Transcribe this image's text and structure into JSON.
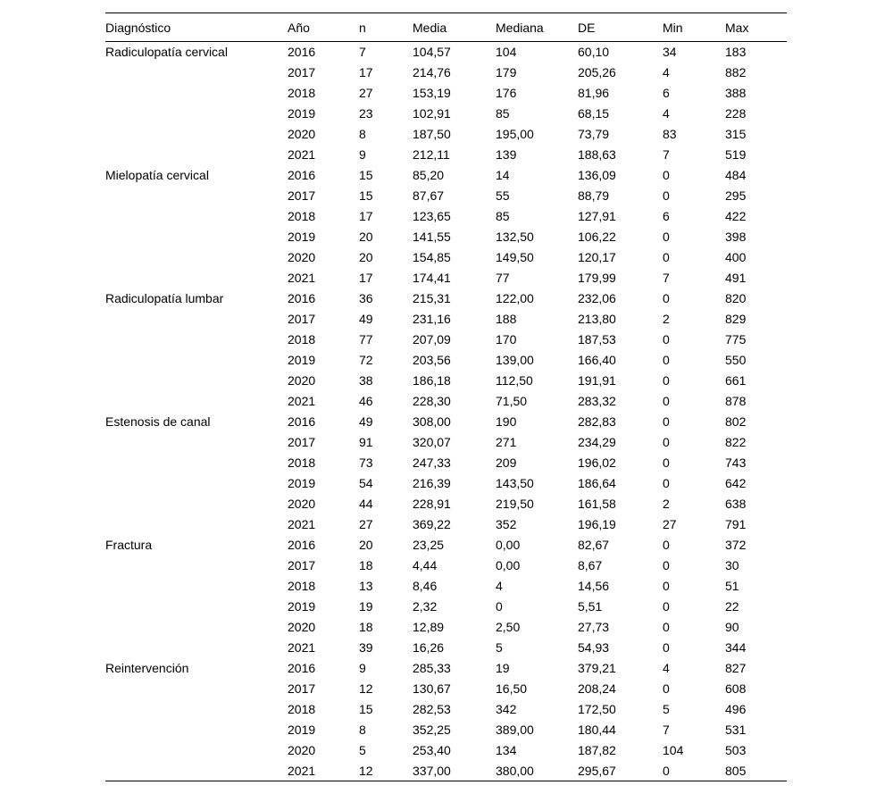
{
  "table": {
    "columns": [
      "Diagnóstico",
      "Año",
      "n",
      "Media",
      "Mediana",
      "DE",
      "Min",
      "Max"
    ],
    "groups": [
      {
        "diagnosis": "Radiculopatía cervical",
        "rows": [
          [
            "2016",
            "7",
            "104,57",
            "104",
            "60,10",
            "34",
            "183"
          ],
          [
            "2017",
            "17",
            "214,76",
            "179",
            "205,26",
            "4",
            "882"
          ],
          [
            "2018",
            "27",
            "153,19",
            "176",
            "81,96",
            "6",
            "388"
          ],
          [
            "2019",
            "23",
            "102,91",
            "85",
            "68,15",
            "4",
            "228"
          ],
          [
            "2020",
            "8",
            "187,50",
            "195,00",
            "73,79",
            "83",
            "315"
          ],
          [
            "2021",
            "9",
            "212,11",
            "139",
            "188,63",
            "7",
            "519"
          ]
        ]
      },
      {
        "diagnosis": "Mielopatía cervical",
        "rows": [
          [
            "2016",
            "15",
            "85,20",
            "14",
            "136,09",
            "0",
            "484"
          ],
          [
            "2017",
            "15",
            "87,67",
            "55",
            "88,79",
            "0",
            "295"
          ],
          [
            "2018",
            "17",
            "123,65",
            "85",
            "127,91",
            "6",
            "422"
          ],
          [
            "2019",
            "20",
            "141,55",
            "132,50",
            "106,22",
            "0",
            "398"
          ],
          [
            "2020",
            "20",
            "154,85",
            "149,50",
            "120,17",
            "0",
            "400"
          ],
          [
            "2021",
            "17",
            "174,41",
            "77",
            "179,99",
            "7",
            "491"
          ]
        ]
      },
      {
        "diagnosis": "Radiculopatía lumbar",
        "rows": [
          [
            "2016",
            "36",
            "215,31",
            "122,00",
            "232,06",
            "0",
            "820"
          ],
          [
            "2017",
            "49",
            "231,16",
            "188",
            "213,80",
            "2",
            "829"
          ],
          [
            "2018",
            "77",
            "207,09",
            "170",
            "187,53",
            "0",
            "775"
          ],
          [
            "2019",
            "72",
            "203,56",
            "139,00",
            "166,40",
            "0",
            "550"
          ],
          [
            "2020",
            "38",
            "186,18",
            "112,50",
            "191,91",
            "0",
            "661"
          ],
          [
            "2021",
            "46",
            "228,30",
            "71,50",
            "283,32",
            "0",
            "878"
          ]
        ]
      },
      {
        "diagnosis": "Estenosis de canal",
        "rows": [
          [
            "2016",
            "49",
            "308,00",
            "190",
            "282,83",
            "0",
            "802"
          ],
          [
            "2017",
            "91",
            "320,07",
            "271",
            "234,29",
            "0",
            "822"
          ],
          [
            "2018",
            "73",
            "247,33",
            "209",
            "196,02",
            "0",
            "743"
          ],
          [
            "2019",
            "54",
            "216,39",
            "143,50",
            "186,64",
            "0",
            "642"
          ],
          [
            "2020",
            "44",
            "228,91",
            "219,50",
            "161,58",
            "2",
            "638"
          ],
          [
            "2021",
            "27",
            "369,22",
            "352",
            "196,19",
            "27",
            "791"
          ]
        ]
      },
      {
        "diagnosis": "Fractura",
        "rows": [
          [
            "2016",
            "20",
            "23,25",
            "0,00",
            "82,67",
            "0",
            "372"
          ],
          [
            "2017",
            "18",
            "4,44",
            "0,00",
            "8,67",
            "0",
            "30"
          ],
          [
            "2018",
            "13",
            "8,46",
            "4",
            "14,56",
            "0",
            "51"
          ],
          [
            "2019",
            "19",
            "2,32",
            "0",
            "5,51",
            "0",
            "22"
          ],
          [
            "2020",
            "18",
            "12,89",
            "2,50",
            "27,73",
            "0",
            "90"
          ],
          [
            "2021",
            "39",
            "16,26",
            "5",
            "54,93",
            "0",
            "344"
          ]
        ]
      },
      {
        "diagnosis": "Reintervención",
        "rows": [
          [
            "2016",
            "9",
            "285,33",
            "19",
            "379,21",
            "4",
            "827"
          ],
          [
            "2017",
            "12",
            "130,67",
            "16,50",
            "208,24",
            "0",
            "608"
          ],
          [
            "2018",
            "15",
            "282,53",
            "342",
            "172,50",
            "5",
            "496"
          ],
          [
            "2019",
            "8",
            "352,25",
            "389,00",
            "180,44",
            "7",
            "531"
          ],
          [
            "2020",
            "5",
            "253,40",
            "134",
            "187,82",
            "104",
            "503"
          ],
          [
            "2021",
            "12",
            "337,00",
            "380,00",
            "295,67",
            "0",
            "805"
          ]
        ]
      }
    ]
  }
}
